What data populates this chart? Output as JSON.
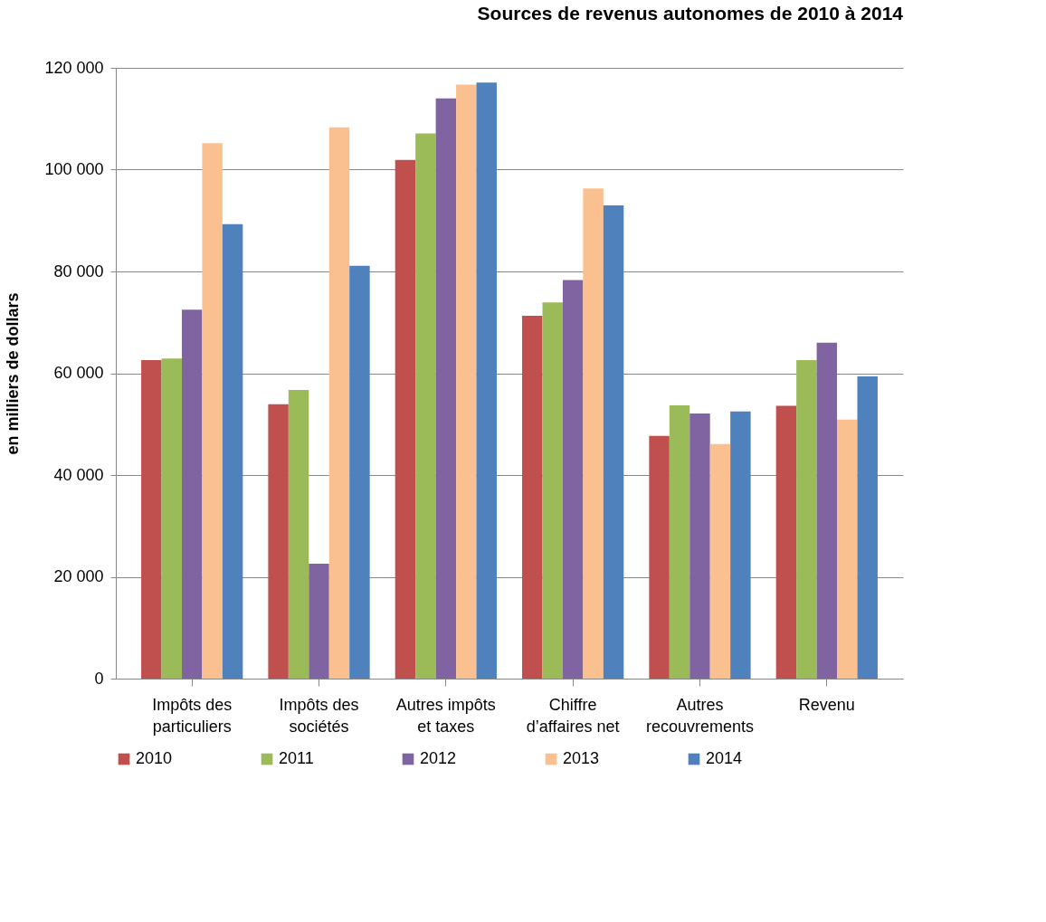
{
  "chart_data": {
    "type": "bar",
    "title": "Sources de revenus autonomes de 2010 à 2014",
    "ylabel": "en milliers de dollars",
    "categories": [
      "Impôts des particuliers",
      "Impôts des sociétés",
      "Autres impôts et taxes",
      "Chiffre d’affaires net",
      "Autres recouvrements",
      "Revenu"
    ],
    "series": [
      {
        "name": "2010",
        "color": "#c0504d",
        "values": [
          62600,
          53900,
          101900,
          71300,
          47700,
          53600
        ]
      },
      {
        "name": "2011",
        "color": "#9bbb59",
        "values": [
          62900,
          56700,
          107100,
          73900,
          53700,
          62600
        ]
      },
      {
        "name": "2012",
        "color": "#8064a2",
        "values": [
          72500,
          22600,
          114000,
          78300,
          52100,
          66000
        ]
      },
      {
        "name": "2013",
        "color": "#fac090",
        "values": [
          105200,
          108300,
          116700,
          96300,
          46100,
          50900
        ]
      },
      {
        "name": "2014",
        "color": "#4f81bd",
        "values": [
          89300,
          81100,
          117100,
          93000,
          52500,
          59400
        ]
      }
    ],
    "ylim": [
      0,
      120000
    ],
    "yticks": [
      {
        "value": 0,
        "label": "0"
      },
      {
        "value": 20000,
        "label": "20 000"
      },
      {
        "value": 40000,
        "label": "40 000"
      },
      {
        "value": 60000,
        "label": "60 000"
      },
      {
        "value": 80000,
        "label": "80 000"
      },
      {
        "value": 100000,
        "label": "100 000"
      },
      {
        "value": 120000,
        "label": "120 000"
      }
    ],
    "grid": "y",
    "legend": "bottom"
  }
}
